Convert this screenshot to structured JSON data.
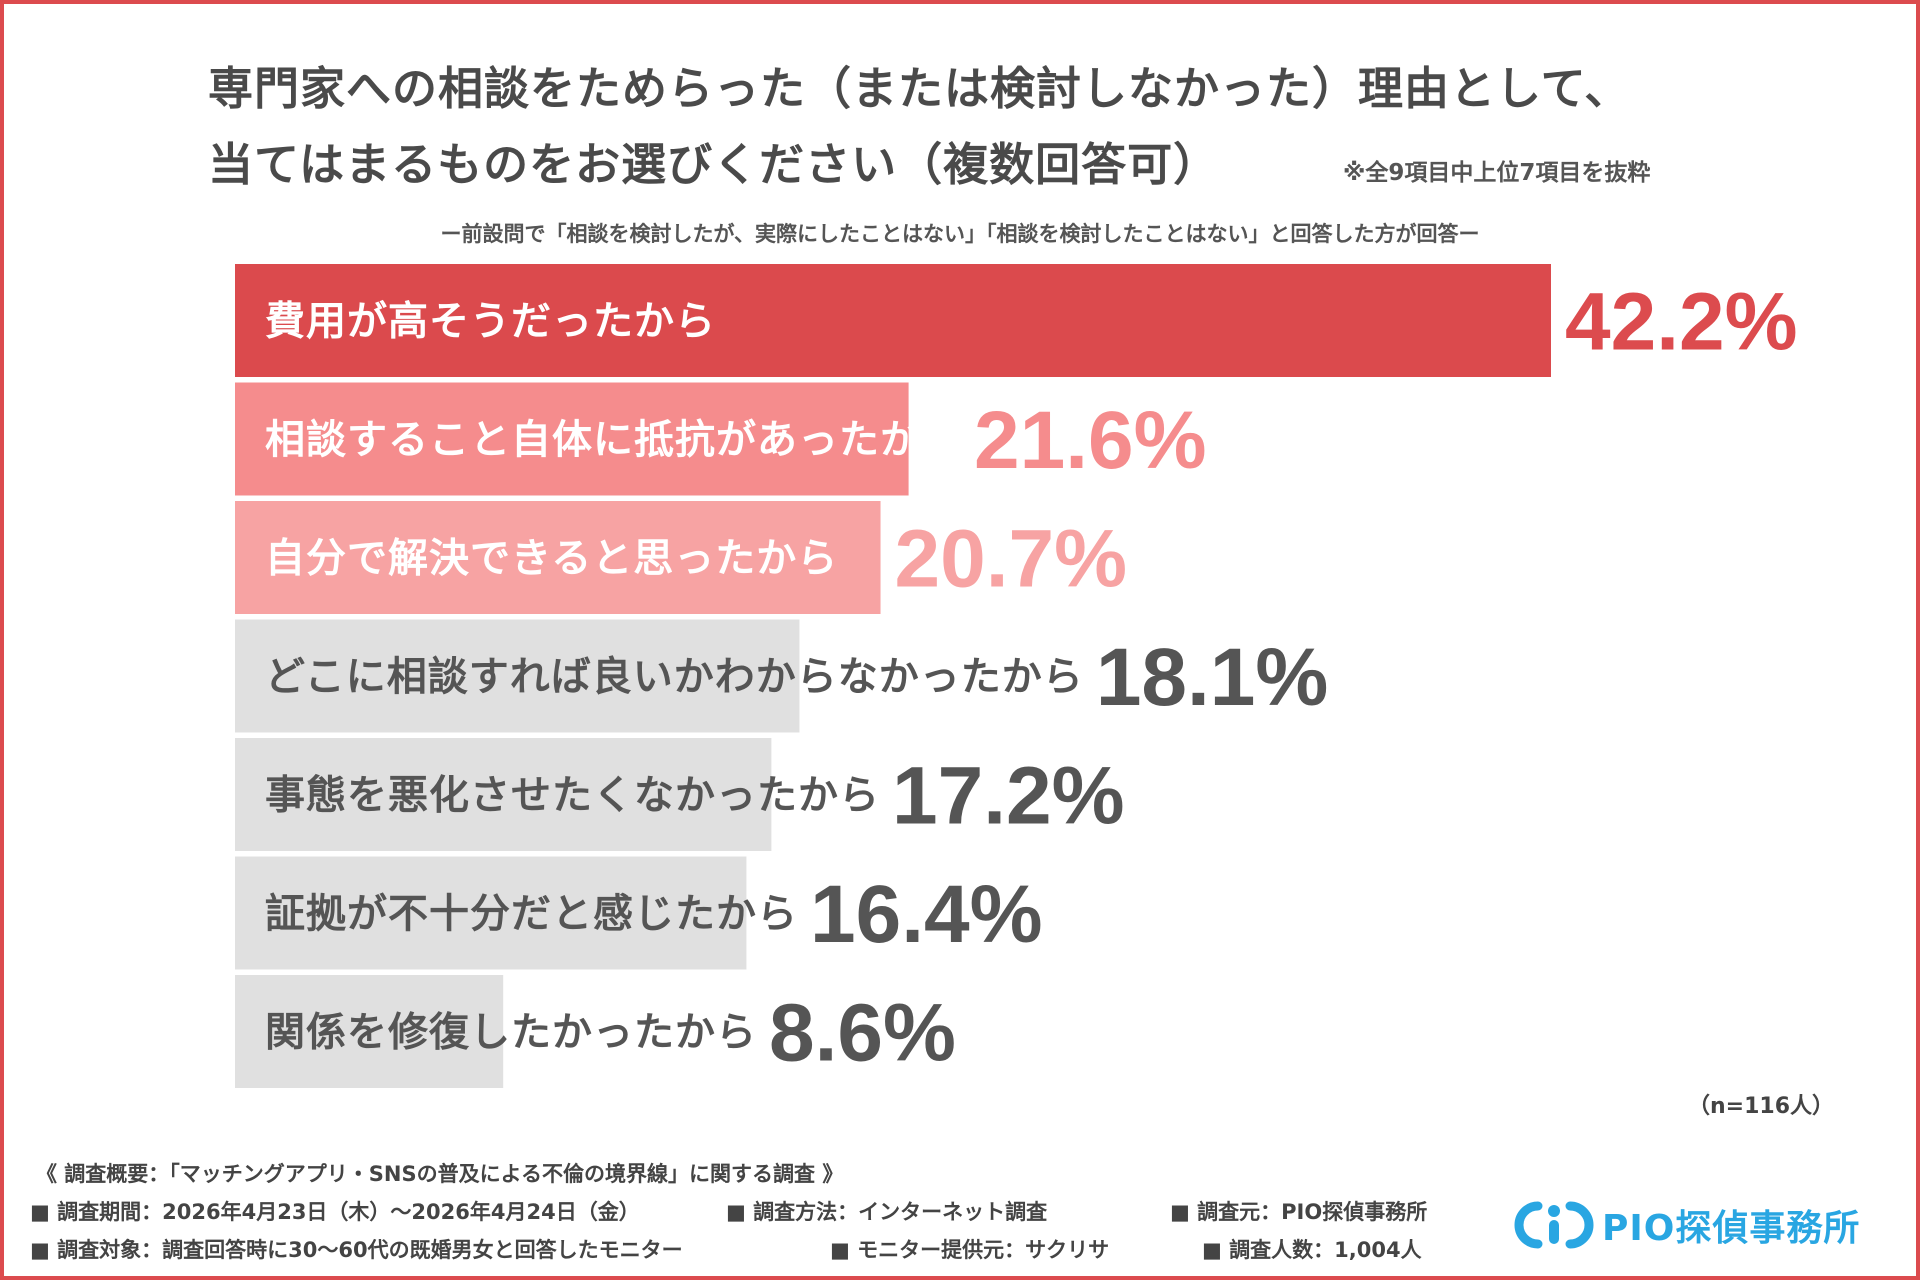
{
  "title_line1": "専門家への相談をためらった（または検討しなかった）理由として、",
  "title_line2": "当てはまるものをお選びください（複数回答可）",
  "excerpt_note": "※全9項目中上位7項目を抜粋",
  "subtitle": "ー前設問で「相談を検討したが、実際にしたことはない」「相談を検討したことはない」と回答した方が回答ー",
  "n_note": "（n=116人）",
  "colors": {
    "frame": "#dc4b4e",
    "bar_top": "#db4a4d",
    "bar_second": "#f58c8d",
    "bar_third": "#f7a3a3",
    "bar_gray": "#e0e0e0",
    "text_gray": "#555555",
    "logo_blue": "#29a6e2"
  },
  "chart_data": {
    "type": "bar",
    "orientation": "horizontal",
    "unit": "%",
    "xlim": [
      0,
      42.2
    ],
    "categories": [
      "費用が高そうだったから",
      "相談すること自体に抵抗があったから",
      "自分で解決できると思ったから",
      "どこに相談すれば良いかわからなかったから",
      "事態を悪化させたくなかったから",
      "証拠が不十分だと感じたから",
      "関係を修復したかったから"
    ],
    "values": [
      42.2,
      21.6,
      20.7,
      18.1,
      17.2,
      16.4,
      8.6
    ],
    "value_labels": [
      "42.2%",
      "21.6%",
      "20.7%",
      "18.1%",
      "17.2%",
      "16.4%",
      "8.6%"
    ],
    "bar_colors": [
      "#db4a4d",
      "#f58c8d",
      "#f7a3a3",
      "#e0e0e0",
      "#e0e0e0",
      "#e0e0e0",
      "#e0e0e0"
    ],
    "value_colors": [
      "#dc4b4e",
      "#f58c8d",
      "#f7a3a3",
      "#555555",
      "#555555",
      "#555555",
      "#555555"
    ],
    "label_colors": [
      "#ffffff",
      "#ffffff",
      "#ffffff",
      "#555555",
      "#555555",
      "#555555",
      "#555555"
    ],
    "grid": false,
    "legend": "none"
  },
  "survey": {
    "title": "《 調査概要：「マッチングアプリ・SNSの普及による不倫の境界線」に関する調査 》",
    "period": "■ 調査期間：2026年4月23日（木）〜2026年4月24日（金）",
    "method": "■ 調査方法：インターネット調査",
    "source": "■ 調査元：PIO探偵事務所",
    "target": "■ 調査対象：調査回答時に30〜60代の既婚男女と回答したモニター",
    "provider": "■ モニター提供元：サクリサ",
    "count": "■ 調査人数：1,004人"
  },
  "logo": {
    "text": "PIO探偵事務所",
    "icon": "pio-logo-icon"
  }
}
